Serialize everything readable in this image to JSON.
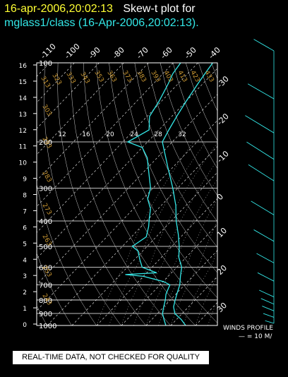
{
  "header": {
    "timestamp": "16-apr-2006,20:02:13",
    "plot_label": "Skew-t plot for",
    "subtitle": "mglass1/class (16-Apr-2006,20:02:13)."
  },
  "notice": "REAL-TIME DATA, NOT CHECKED FOR QUALITY",
  "winds": {
    "label": "WINDS PROFILE",
    "scale": "— = 10 M/"
  },
  "colors": {
    "profile": "#33e8e8",
    "isobar": "#ffffff",
    "isotherm": "#ffffff",
    "dry_adiabat_label": "#cc9933",
    "mixing_ratio_label": "#ffffff",
    "moist_adiabat": "#bbbbbb"
  },
  "chart_data": {
    "type": "line",
    "title": "",
    "xlabel": "",
    "ylabel": "",
    "x_scale": "skewed-temperature",
    "y_scale": "log-pressure",
    "xlim": [
      -40,
      40
    ],
    "ylim": [
      1000,
      100
    ],
    "grid": true,
    "pressure_ticks": [
      100,
      200,
      300,
      400,
      500,
      600,
      700,
      800,
      900,
      1000
    ],
    "height_km_ticks": [
      "16",
      "15",
      "14",
      "13",
      "12",
      "11",
      "10",
      "9",
      "8",
      "7",
      "6",
      "5",
      "4",
      "3",
      "2",
      "1",
      "0"
    ],
    "isotherm_labels_top": [
      "-110",
      "-100",
      "-90",
      "-80",
      "-70",
      "-60",
      "-50",
      "-40"
    ],
    "isotherm_labels_right": [
      "-30",
      "-20",
      "-10",
      "0",
      "10",
      "20",
      "30"
    ],
    "dry_adiabat_labels": [
      "313",
      "323",
      "333",
      "343",
      "353",
      "363",
      "373",
      "383",
      "393",
      "403",
      "413",
      "423",
      "433",
      "303",
      "293",
      "283",
      "273",
      "263",
      "253",
      "243"
    ],
    "mixing_ratio_labels": [
      "12",
      "16",
      "20",
      "24",
      "28",
      "32"
    ],
    "series": [
      {
        "values": [
          [
            1000,
            26
          ],
          [
            950,
            22
          ],
          [
            900,
            17
          ],
          [
            850,
            14
          ],
          [
            800,
            12
          ],
          [
            750,
            10
          ],
          [
            700,
            8
          ],
          [
            650,
            5
          ],
          [
            600,
            2
          ],
          [
            550,
            -3
          ],
          [
            500,
            -7
          ],
          [
            450,
            -12
          ],
          [
            400,
            -18
          ],
          [
            350,
            -24
          ],
          [
            300,
            -32
          ],
          [
            250,
            -42
          ],
          [
            200,
            -54
          ],
          [
            180,
            -56
          ],
          [
            160,
            -58
          ],
          [
            140,
            -60
          ],
          [
            120,
            -62
          ],
          [
            110,
            -63
          ],
          [
            100,
            -64
          ]
        ]
      },
      {
        "values": [
          [
            1000,
            18
          ],
          [
            950,
            15
          ],
          [
            900,
            12
          ],
          [
            850,
            10
          ],
          [
            800,
            8
          ],
          [
            760,
            6
          ],
          [
            730,
            5
          ],
          [
            700,
            4
          ],
          [
            680,
            0
          ],
          [
            650,
            -10
          ],
          [
            640,
            -18
          ],
          [
            630,
            -6
          ],
          [
            600,
            -14
          ],
          [
            560,
            -18
          ],
          [
            520,
            -22
          ],
          [
            500,
            -26
          ],
          [
            460,
            -24
          ],
          [
            420,
            -27
          ],
          [
            390,
            -30
          ],
          [
            360,
            -33
          ],
          [
            330,
            -38
          ],
          [
            300,
            -41
          ],
          [
            260,
            -48
          ],
          [
            230,
            -54
          ],
          [
            210,
            -60
          ],
          [
            200,
            -68
          ],
          [
            190,
            -66
          ],
          [
            180,
            -64
          ],
          [
            160,
            -69
          ],
          [
            140,
            -71
          ],
          [
            120,
            -74
          ],
          [
            110,
            -76
          ],
          [
            100,
            -77
          ]
        ]
      }
    ],
    "wind_barbs_ms": [
      [
        1000,
        5,
        200
      ],
      [
        950,
        8,
        210
      ],
      [
        900,
        10,
        220
      ],
      [
        850,
        12,
        225
      ],
      [
        800,
        15,
        230
      ],
      [
        700,
        18,
        240
      ],
      [
        600,
        20,
        245
      ],
      [
        500,
        25,
        250
      ],
      [
        400,
        30,
        255
      ],
      [
        300,
        35,
        260
      ],
      [
        250,
        38,
        260
      ],
      [
        200,
        40,
        255
      ],
      [
        150,
        35,
        250
      ],
      [
        100,
        25,
        250
      ]
    ]
  }
}
